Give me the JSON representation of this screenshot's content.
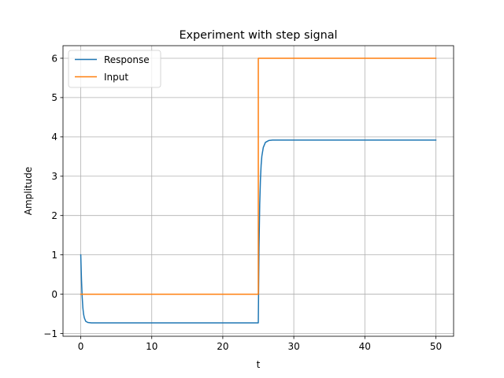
{
  "chart_data": {
    "type": "line",
    "title": "Experiment with step signal",
    "xlabel": "t",
    "ylabel": "Amplitude",
    "xlim": [
      -2.5,
      52.5
    ],
    "ylim": [
      -1.07,
      6.32
    ],
    "xticks": [
      0,
      10,
      20,
      30,
      40,
      50
    ],
    "yticks": [
      -1,
      0,
      1,
      2,
      3,
      4,
      5,
      6
    ],
    "grid": true,
    "legend_position": "top-left",
    "series": [
      {
        "name": "Response",
        "color": "#1f77b4",
        "x": [
          0,
          0.1,
          0.2,
          0.3,
          0.4,
          0.5,
          0.7,
          1.0,
          1.5,
          2.0,
          3.0,
          5.0,
          10.0,
          15.0,
          20.0,
          24.9,
          25.0,
          25.1,
          25.2,
          25.3,
          25.4,
          25.5,
          25.7,
          26.0,
          26.5,
          27.0,
          28.0,
          30.0,
          40.0,
          50.0
        ],
        "y": [
          1.0,
          0.38,
          -0.07,
          -0.35,
          -0.51,
          -0.6,
          -0.69,
          -0.72,
          -0.73,
          -0.73,
          -0.73,
          -0.73,
          -0.73,
          -0.73,
          -0.73,
          -0.73,
          -0.73,
          1.18,
          2.28,
          2.91,
          3.29,
          3.51,
          3.73,
          3.86,
          3.91,
          3.92,
          3.92,
          3.92,
          3.92,
          3.92
        ]
      },
      {
        "name": "Input",
        "color": "#ff7f0e",
        "x": [
          0,
          25.0,
          25.0,
          50.0
        ],
        "y": [
          0,
          0,
          6,
          6
        ]
      }
    ]
  }
}
